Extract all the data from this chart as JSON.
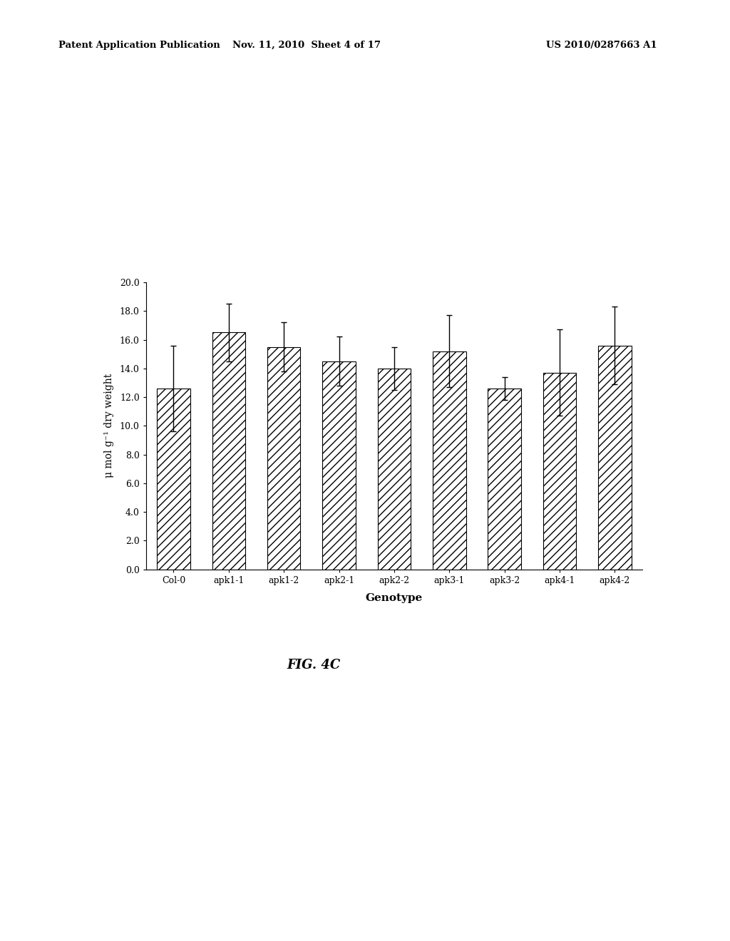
{
  "categories": [
    "Col-0",
    "apk1-1",
    "apk1-2",
    "apk2-1",
    "apk2-2",
    "apk3-1",
    "apk3-2",
    "apk4-1",
    "apk4-2"
  ],
  "values": [
    12.6,
    16.5,
    15.5,
    14.5,
    14.0,
    15.2,
    12.6,
    13.7,
    15.6
  ],
  "errors": [
    3.0,
    2.0,
    1.7,
    1.7,
    1.5,
    2.5,
    0.8,
    3.0,
    2.7
  ],
  "ylabel": "μ mol g⁻¹ dry weight",
  "xlabel": "Genotype",
  "ylim": [
    0.0,
    20.0
  ],
  "yticks": [
    0.0,
    2.0,
    4.0,
    6.0,
    8.0,
    10.0,
    12.0,
    14.0,
    16.0,
    18.0,
    20.0
  ],
  "bar_color": "#ffffff",
  "bar_edgecolor": "#000000",
  "hatch": "///",
  "fig_caption": "FIG. 4C",
  "header_left": "Patent Application Publication",
  "header_mid": "Nov. 11, 2010  Sheet 4 of 17",
  "header_right": "US 2010/0287663 A1",
  "background_color": "#ffffff",
  "bar_width": 0.6
}
